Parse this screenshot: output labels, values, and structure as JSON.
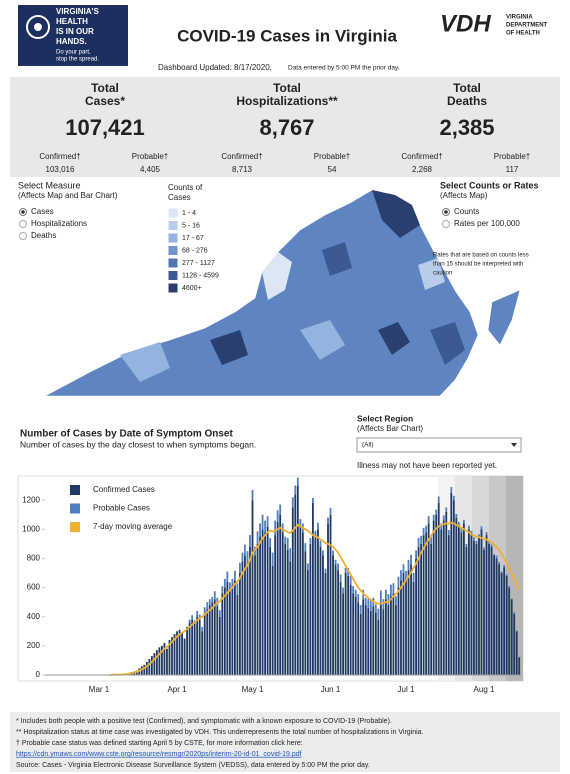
{
  "header": {
    "logo": [
      "VIRGINIA'S",
      "HEALTH",
      "IS IN OUR",
      "HANDS."
    ],
    "logo_tag": [
      "Do your part,",
      "stop the spread."
    ],
    "title": "COVID-19 Cases in Virginia",
    "vdh": "VDH",
    "vdh_name": [
      "VIRGINIA",
      "DEPARTMENT",
      "OF HEALTH"
    ],
    "updated": "Dashboard Updated: 8/17/2020,",
    "updated_note": "Data entered by 5:00 PM the prior day."
  },
  "summary": [
    {
      "label": [
        "Total",
        "Cases*"
      ],
      "total": "107,421",
      "confirmed_label": "Confirmed†",
      "confirmed": "103,016",
      "probable_label": "Probable†",
      "probable": "4,405"
    },
    {
      "label": [
        "Total",
        "Hospitalizations**"
      ],
      "total": "8,767",
      "confirmed_label": "Confirmed†",
      "confirmed": "8,713",
      "probable_label": "Probable†",
      "probable": "54"
    },
    {
      "label": [
        "Total",
        "Deaths"
      ],
      "total": "2,385",
      "confirmed_label": "Confirmed†",
      "confirmed": "2,268",
      "probable_label": "Probable†",
      "probable": "117"
    }
  ],
  "controls": {
    "measure_title": [
      "Select Measure",
      "(Affects Map and Bar Chart)"
    ],
    "measure_options": [
      "Cases",
      "Hospitalizations",
      "Deaths"
    ],
    "rates_title": [
      "Select Counts or Rates",
      "(Affects Map)"
    ],
    "rates_options": [
      "Counts",
      "Rates per 100,000"
    ],
    "rates_note": [
      "Rates that are based on counts less",
      "than 15 should be interpreted with",
      "caution"
    ],
    "region_title": [
      "Select Region",
      "(Affects Bar Chart)"
    ],
    "region_value": "(All)"
  },
  "map_legend": {
    "title": [
      "Counts of",
      "Cases"
    ],
    "items": [
      {
        "label": "1 - 4",
        "color": "#dce6f5"
      },
      {
        "label": "5 - 16",
        "color": "#b9cdea"
      },
      {
        "label": "17 - 67",
        "color": "#94b3df"
      },
      {
        "label": "68 - 276",
        "color": "#7095cc"
      },
      {
        "label": "277 - 1127",
        "color": "#5275b0"
      },
      {
        "label": "1128 - 4599",
        "color": "#3b5a93"
      },
      {
        "label": "4600+",
        "color": "#2a3f6e"
      }
    ]
  },
  "chart_data": {
    "type": "bar",
    "stacked": true,
    "title": "Number of Cases by Date of Symptom Onset",
    "subtitle": "Number of cases by the day closest to when symptoms began.",
    "annotation": "Illness may not have been reported yet.",
    "categories": [
      null,
      null,
      null,
      null,
      "Mar 1",
      null,
      null,
      null,
      null,
      null,
      null,
      null,
      null,
      null,
      null,
      null,
      null,
      null,
      null,
      null,
      null,
      null,
      null,
      null,
      null,
      null,
      null,
      null,
      null,
      null,
      null,
      null,
      null,
      null,
      null,
      "Apr 1",
      null,
      null,
      null,
      null,
      null,
      null,
      null,
      null,
      null,
      null,
      null,
      null,
      null,
      null,
      null,
      null,
      null,
      null,
      null,
      null,
      null,
      null,
      null,
      null,
      null,
      null,
      null,
      null,
      null,
      "May 1",
      null,
      null,
      null,
      null,
      null,
      null,
      null,
      null,
      null,
      null,
      null,
      null,
      null,
      null,
      null,
      null,
      null,
      null,
      null,
      null,
      null,
      null,
      null,
      null,
      null,
      null,
      null,
      null,
      null,
      null,
      "Jun 1",
      null,
      null,
      null,
      null,
      null,
      null,
      null,
      null,
      null,
      null,
      null,
      null,
      null,
      null,
      null,
      null,
      null,
      null,
      null,
      null,
      null,
      null,
      null,
      null,
      null,
      null,
      null,
      null,
      null,
      "Jul 1",
      null,
      null,
      null,
      null,
      null,
      null,
      null,
      null,
      null,
      null,
      null,
      null,
      null,
      null,
      null,
      null,
      null,
      null,
      null,
      null,
      null,
      null,
      null,
      null,
      null,
      null,
      null,
      null,
      null,
      null,
      "Aug 1",
      null,
      null,
      null,
      null,
      null,
      null,
      null,
      null,
      null,
      null,
      null,
      null,
      null,
      null
    ],
    "series": [
      {
        "name": "Confirmed Cases",
        "color": "#1f3864",
        "values": [
          0,
          0,
          0,
          0,
          0,
          0,
          0,
          0,
          1,
          0,
          2,
          3,
          2,
          5,
          8,
          10,
          14,
          20,
          25,
          30,
          45,
          60,
          70,
          90,
          110,
          130,
          150,
          170,
          190,
          200,
          220,
          180,
          240,
          260,
          280,
          300,
          310,
          290,
          250,
          330,
          360,
          380,
          350,
          400,
          380,
          300,
          420,
          450,
          480,
          500,
          520,
          470,
          400,
          560,
          600,
          640,
          580,
          620,
          650,
          550,
          700,
          780,
          820,
          760,
          880,
          1200,
          820,
          900,
          950,
          1000,
          980,
          1020,
          880,
          750,
          960,
          1050,
          1100,
          980,
          900,
          860,
          780,
          1150,
          1240,
          1300,
          1020,
          980,
          850,
          720,
          900,
          1180,
          960,
          1000,
          880,
          820,
          700,
          1040,
          1100,
          820,
          760,
          720,
          640,
          560,
          700,
          680,
          620,
          560,
          540,
          500,
          420,
          520,
          480,
          460,
          440,
          470,
          430,
          380,
          500,
          450,
          520,
          480,
          540,
          560,
          480,
          600,
          650,
          700,
          660,
          720,
          760,
          640,
          800,
          880,
          900,
          960,
          980,
          1040,
          900,
          1060,
          1100,
          1180,
          1000,
          1060,
          1120,
          960,
          1250,
          1200,
          1080,
          1020,
          980,
          1040,
          880,
          1000,
          960,
          920,
          900,
          940,
          1000,
          860,
          960,
          900,
          880,
          820,
          800,
          760,
          700,
          740,
          680,
          600,
          520,
          420,
          300,
          120
        ]
      },
      {
        "name": "Probable Cases",
        "color": "#4f7fc1",
        "values": [
          0,
          0,
          0,
          0,
          0,
          0,
          0,
          0,
          0,
          0,
          0,
          0,
          0,
          0,
          0,
          0,
          0,
          0,
          0,
          0,
          0,
          0,
          0,
          0,
          0,
          0,
          0,
          0,
          0,
          0,
          0,
          0,
          0,
          0,
          0,
          0,
          0,
          0,
          0,
          0,
          20,
          30,
          25,
          40,
          35,
          30,
          45,
          50,
          40,
          35,
          55,
          60,
          45,
          50,
          60,
          70,
          55,
          40,
          65,
          80,
          70,
          60,
          75,
          90,
          80,
          70,
          60,
          85,
          90,
          100,
          80,
          70,
          60,
          90,
          100,
          80,
          70,
          60,
          50,
          80,
          90,
          70,
          60,
          55,
          50,
          60,
          55,
          45,
          40,
          35,
          30,
          45,
          40,
          35,
          30,
          40,
          45,
          35,
          30,
          45,
          50,
          40,
          35,
          55,
          60,
          50,
          45,
          55,
          60,
          65,
          50,
          60,
          70,
          60,
          55,
          75,
          80,
          70,
          65,
          75,
          80,
          70,
          60,
          75,
          70,
          60,
          55,
          70,
          65,
          60,
          55,
          60,
          55,
          50,
          45,
          50,
          45,
          40,
          35,
          45,
          40,
          35,
          30,
          35,
          40,
          30,
          25,
          30,
          30,
          25,
          20,
          25,
          30,
          25,
          20,
          25,
          20,
          15,
          20,
          15,
          15,
          10,
          20,
          15,
          10,
          15,
          10,
          10,
          5,
          10,
          5,
          5
        ]
      },
      {
        "name": "7-day moving average",
        "color": "#f0b030",
        "type": "line",
        "values": [
          null,
          null,
          null,
          null,
          null,
          null,
          null,
          null,
          1,
          1,
          2,
          2,
          3,
          4,
          5,
          7,
          10,
          13,
          17,
          22,
          29,
          38,
          47,
          60,
          74,
          90,
          107,
          125,
          144,
          162,
          181,
          193,
          210,
          227,
          245,
          263,
          280,
          290,
          300,
          315,
          330,
          345,
          360,
          375,
          390,
          400,
          415,
          430,
          445,
          460,
          480,
          495,
          505,
          525,
          545,
          565,
          580,
          600,
          625,
          640,
          665,
          700,
          730,
          750,
          790,
          840,
          860,
          880,
          910,
          940,
          960,
          980,
          990,
          985,
          990,
          1000,
          1010,
          1000,
          990,
          980,
          975,
          990,
          1010,
          1030,
          1020,
          1010,
          1000,
          990,
          975,
          960,
          950,
          945,
          930,
          920,
          905,
          900,
          890,
          880,
          860,
          840,
          810,
          780,
          750,
          720,
          690,
          660,
          630,
          600,
          580,
          560,
          545,
          530,
          515,
          505,
          495,
          490,
          490,
          495,
          500,
          505,
          520,
          540,
          555,
          575,
          600,
          625,
          650,
          675,
          705,
          735,
          765,
          800,
          840,
          870,
          900,
          930,
          955,
          985,
          1005,
          1020,
          1030,
          1035,
          1040,
          1040,
          1045,
          1040,
          1030,
          1020,
          1010,
          1000,
          990,
          980,
          965,
          955,
          950,
          945,
          940,
          935,
          930,
          920,
          910,
          895,
          880,
          860,
          830,
          800,
          770,
          740,
          700,
          660,
          620,
          580
        ]
      }
    ],
    "ylim": [
      0,
      1400
    ],
    "yticks": [
      0,
      200,
      400,
      600,
      800,
      1000,
      1200
    ],
    "grid": false,
    "legend": "upper left"
  },
  "footer": [
    "* Includes both people with a positive test (Confirmed), and symptomatic with a known exposure to COVID-19 (Probable).",
    "** Hospitalization status at time case was investigated by VDH. This underrepresents the total number of hospitalizations in Virginia.",
    "† Probable case status was defined starting April 5 by CSTE, for more information click here:",
    "https://cdn.ymaws.com/www.cste.org/resource/resmgr/2020ps/interim-20-id-01_covid-19.pdf",
    "Source:  Cases - Virginia Electronic Disease Surveillance System (VEDSS), data entered by 5:00 PM the prior day."
  ]
}
